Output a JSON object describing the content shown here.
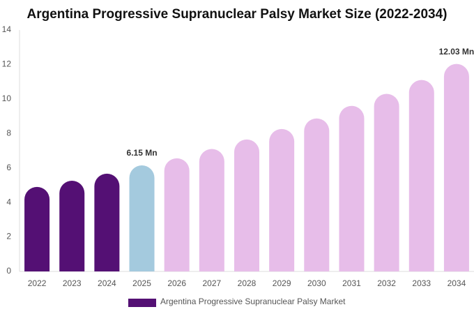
{
  "chart_data": {
    "type": "bar",
    "title": "Argentina Progressive Supranuclear Palsy Market Size (2022-2034)",
    "categories": [
      "2022",
      "2023",
      "2024",
      "2025",
      "2026",
      "2027",
      "2028",
      "2029",
      "2030",
      "2031",
      "2032",
      "2033",
      "2034"
    ],
    "series": [
      {
        "name": "Argentina Progressive Supranuclear Palsy Market",
        "color": "#541074",
        "colors": [
          "#541074",
          "#541074",
          "#541074",
          "#a4cade",
          "#e7bde9",
          "#e7bde9",
          "#e7bde9",
          "#e7bde9",
          "#e7bde9",
          "#e7bde9",
          "#e7bde9",
          "#e7bde9",
          "#e7bde9"
        ],
        "values": [
          4.9,
          5.26,
          5.67,
          6.15,
          6.56,
          7.1,
          7.65,
          8.26,
          8.87,
          9.6,
          10.3,
          11.1,
          12.03
        ],
        "value_labels": [
          null,
          null,
          null,
          "6.15 Mn",
          null,
          null,
          null,
          null,
          null,
          null,
          null,
          null,
          "12.03 Mn"
        ]
      }
    ],
    "ylim": [
      0,
      14
    ],
    "yticks": [
      0,
      2,
      4,
      6,
      8,
      10,
      12,
      14
    ],
    "grid": false,
    "legend": "bottom"
  }
}
